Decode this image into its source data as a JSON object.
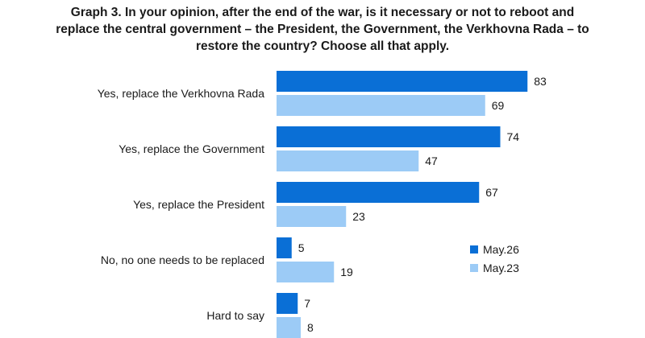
{
  "title": "Graph 3. In your opinion, after the end of the war, is it necessary or not to reboot and replace the central government – the President, the Government, the Verkhovna Rada – to restore the country? Choose all that apply.",
  "chart_data": {
    "type": "bar",
    "orientation": "horizontal",
    "categories": [
      "Yes, replace the Verkhovna Rada",
      "Yes, replace the Government",
      "Yes, replace the President",
      "No, no one needs to be replaced",
      "Hard to say"
    ],
    "series": [
      {
        "name": "May.26",
        "values": [
          83,
          74,
          67,
          5,
          7
        ],
        "color": "#0a6fd6"
      },
      {
        "name": "May.23",
        "values": [
          69,
          47,
          23,
          19,
          8
        ],
        "color": "#9ccbf6"
      }
    ],
    "xlim": [
      0,
      100
    ],
    "grid": false,
    "legend_position": "right"
  }
}
